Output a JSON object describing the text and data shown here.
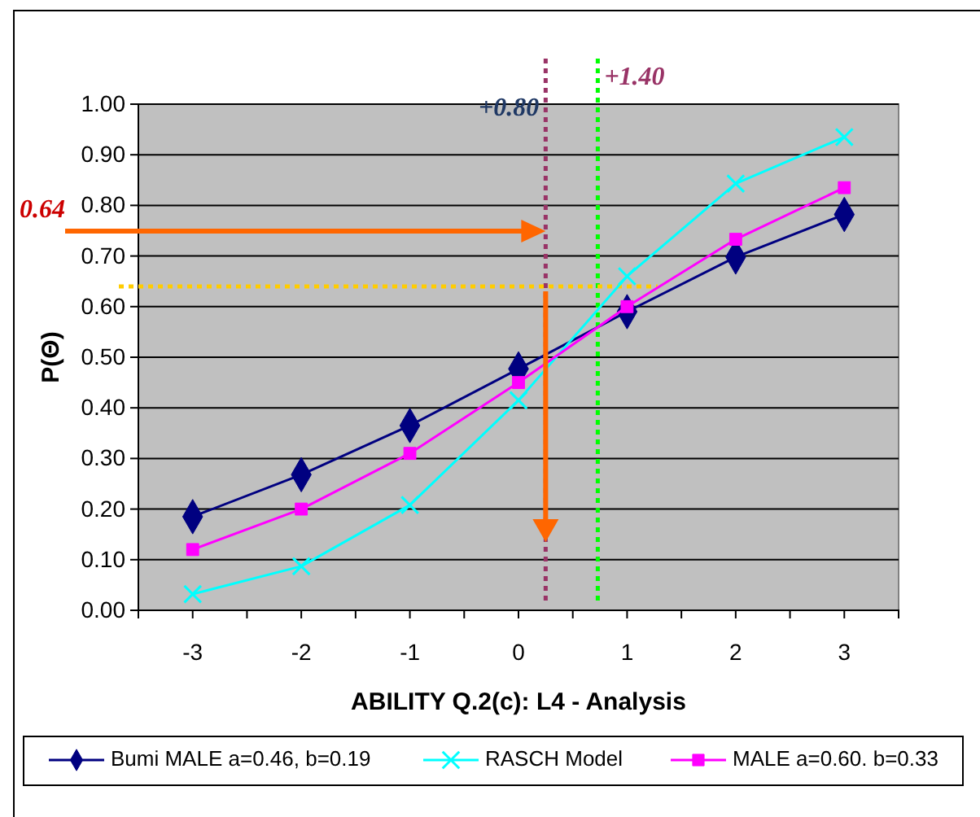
{
  "chart_data": {
    "type": "line",
    "xlabel": "ABILITY Q.2(c): L4 - Analysis",
    "ylabel": "P(Θ)",
    "x": [
      -3,
      -2,
      -1,
      0,
      1,
      2,
      3
    ],
    "xlim": [
      -3.5,
      3.5
    ],
    "xticks": [
      {
        "value": -3.5,
        "label": null
      },
      -3,
      {
        "value": -2.5,
        "label": null
      },
      -2,
      {
        "value": -1.5,
        "label": null
      },
      -1,
      {
        "value": -0.5,
        "label": null
      },
      0,
      {
        "value": 0.5,
        "label": null
      },
      1,
      {
        "value": 1.5,
        "label": null
      },
      2,
      {
        "value": 2.5,
        "label": null
      },
      3,
      {
        "value": 3.5,
        "label": null
      }
    ],
    "ylim": [
      0,
      1
    ],
    "yticks": [
      {
        "value": 0,
        "label": "0.00"
      },
      {
        "value": 0.1,
        "label": "0.10"
      },
      {
        "value": 0.2,
        "label": "0.20"
      },
      {
        "value": 0.3,
        "label": "0.30"
      },
      {
        "value": 0.4,
        "label": "0.40"
      },
      {
        "value": 0.5,
        "label": "0.50"
      },
      {
        "value": 0.6,
        "label": "0.60"
      },
      {
        "value": 0.7,
        "label": "0.70"
      },
      {
        "value": 0.8,
        "label": "0.80"
      },
      {
        "value": 0.9,
        "label": "0.90"
      },
      {
        "value": 1,
        "label": "1.00"
      }
    ],
    "grid": "y",
    "legend": "bottom",
    "line_style": "solid",
    "series": [
      {
        "name": "Bumi MALE a=0.46, b=0.19",
        "color": "#000080",
        "marker": "diamond",
        "values": [
          0.185,
          0.268,
          0.365,
          0.477,
          0.59,
          0.698,
          0.782
        ]
      },
      {
        "name": "RASCH Model",
        "color": "#00ffff",
        "marker": "cross",
        "values": [
          0.032,
          0.087,
          0.208,
          0.415,
          0.66,
          0.843,
          0.935
        ]
      },
      {
        "name": "MALE a=0.60. b=0.33",
        "color": "#ff00ff",
        "marker": "square",
        "values": [
          0.12,
          0.2,
          0.31,
          0.45,
          0.6,
          0.733,
          0.835
        ]
      }
    ],
    "ref_lines": [
      {
        "axis": "x",
        "value": 0.25,
        "color": "#993366",
        "line_style": "dotted"
      },
      {
        "axis": "x",
        "value": 0.73,
        "color": "#00ff00",
        "line_style": "dotted"
      },
      {
        "axis": "y",
        "value": 0.64,
        "color": "#ffcc00",
        "line_style": "dotted"
      }
    ],
    "annotations": [
      {
        "text": "+0.80",
        "x": 0.25,
        "y": 0.99
      },
      {
        "text": "+1.40",
        "x": 0.73,
        "y": 1.05
      },
      "0.64"
    ]
  }
}
